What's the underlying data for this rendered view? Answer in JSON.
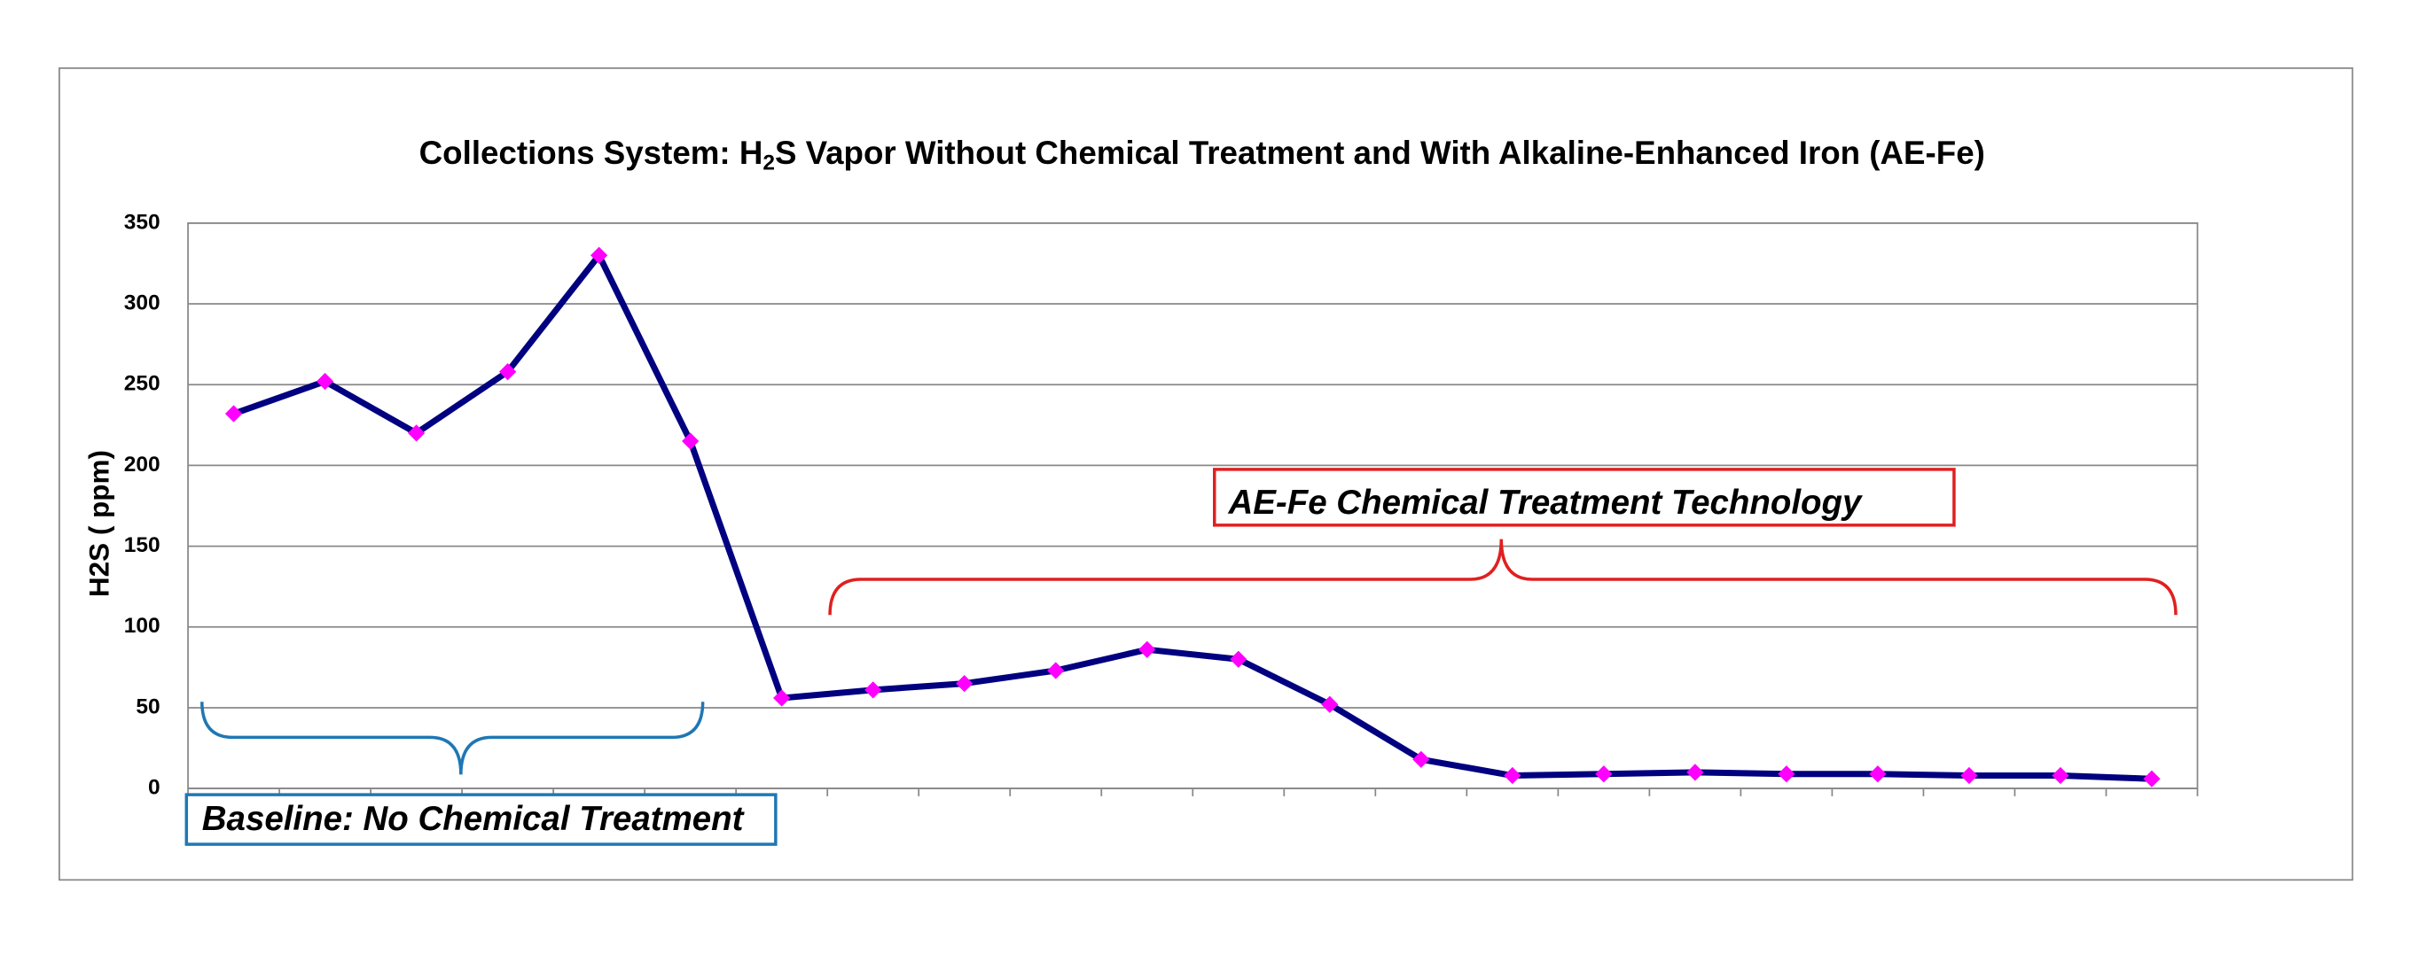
{
  "chart_data": {
    "type": "line",
    "title": [
      "Collections System: H",
      "2",
      "S Vapor Without Chemical Treatment and With Alkaline-Enhanced Iron (AE-Fe)"
    ],
    "ylabel": "H2S ( ppm)",
    "annotations": [
      "AE-Fe Chemical Treatment Technology",
      "Baseline: No Chemical Treatment"
    ],
    "categories": [
      null,
      null,
      null,
      null,
      null,
      null,
      null,
      null,
      null,
      null,
      null,
      null,
      null,
      null,
      null,
      null,
      null,
      null,
      null,
      null,
      null,
      null
    ],
    "series": [
      {
        "name": "H2S",
        "color": "#000080",
        "marker_color": "#ff00ff",
        "values": [
          232,
          252,
          220,
          258,
          330,
          215,
          56,
          61,
          65,
          73,
          86,
          80,
          52,
          18,
          8,
          9,
          10,
          9,
          9,
          8,
          8,
          6
        ]
      }
    ],
    "ylim": [
      0,
      350
    ],
    "yticks": [
      0,
      50,
      100,
      150,
      200,
      250,
      300,
      350
    ],
    "grid": true
  }
}
